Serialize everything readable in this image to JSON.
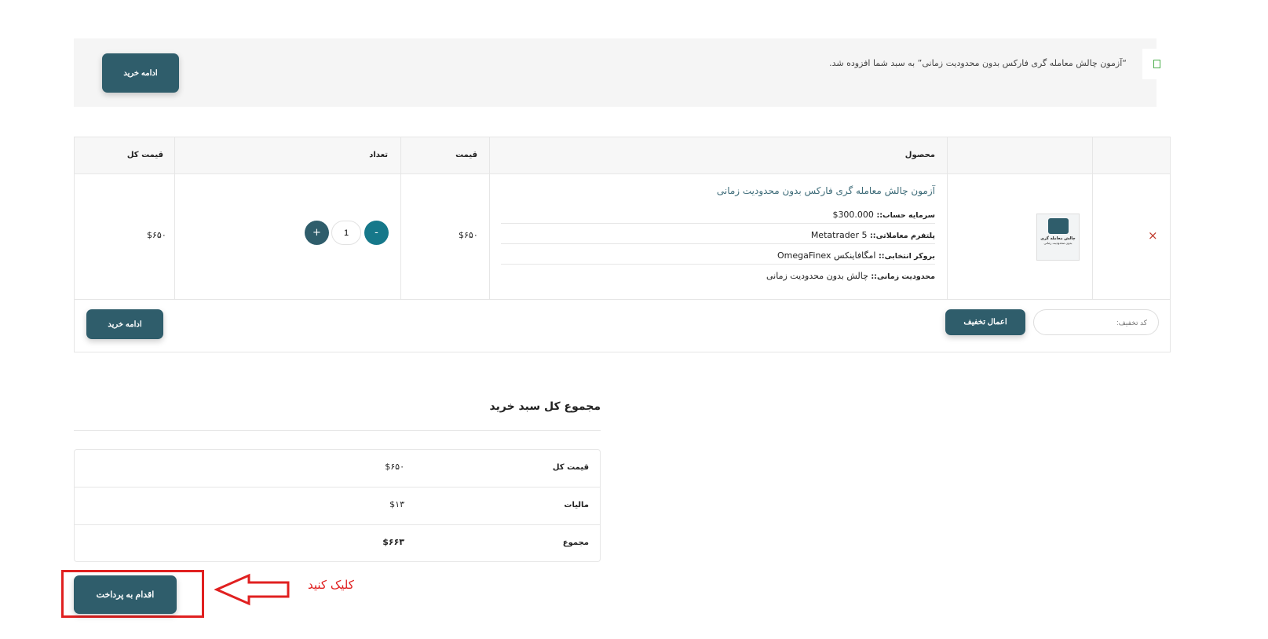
{
  "notice": {
    "message": "“آزمون چالش معامله گری فارکس بدون محدودیت زمانی” به سبد شما افزوده شد.",
    "continue_label": "ادامه خرید",
    "check_icon": "check-square-icon",
    "check_color": "#4cae4c"
  },
  "cart": {
    "headers": {
      "remove": "",
      "thumbnail": "",
      "product": "محصول",
      "price": "قیمت",
      "quantity": "تعداد",
      "subtotal": "قیمت کل"
    },
    "items": [
      {
        "name": "آزمون چالش معامله گری فارکس بدون محدودیت زمانی",
        "meta": [
          {
            "label": "سرمایه حساب::",
            "value": "300.000$"
          },
          {
            "label": "پلتفرم معاملاتی::",
            "value": "Metatrader 5"
          },
          {
            "label": "بروکر انتخابی::",
            "value": "امگافاینکس OmegaFinex"
          },
          {
            "label": "محدودیت زمانی::",
            "value": "چالش بدون محدودیت زمانی"
          }
        ],
        "thumbnail_text": "چالش معامله گری",
        "thumbnail_subtext": "بدون محدودیت زمانی",
        "price": "$۶۵۰",
        "quantity": "1",
        "subtotal": "$۶۵۰",
        "remove_icon": "×"
      }
    ],
    "minus_label": "-",
    "plus_label": "+",
    "coupon_placeholder": "کد تخفیف:",
    "apply_coupon_label": "اعمال تخفیف",
    "continue_label": "ادامه خرید"
  },
  "totals": {
    "title": "مجموع کل سبد خرید",
    "rows": [
      {
        "label": "قیمت کل",
        "value": "$۶۵۰"
      },
      {
        "label": "مالیات",
        "value": "$۱۳"
      },
      {
        "label": "مجموع",
        "value": "$۶۶۳"
      }
    ],
    "checkout_label": "اقدام به پرداخت"
  },
  "annotation": {
    "text": "کلیک کنید",
    "color": "#e02020"
  },
  "colors": {
    "button": "#2f5d6b",
    "minus": "#16788a",
    "link": "#3d6b78"
  }
}
